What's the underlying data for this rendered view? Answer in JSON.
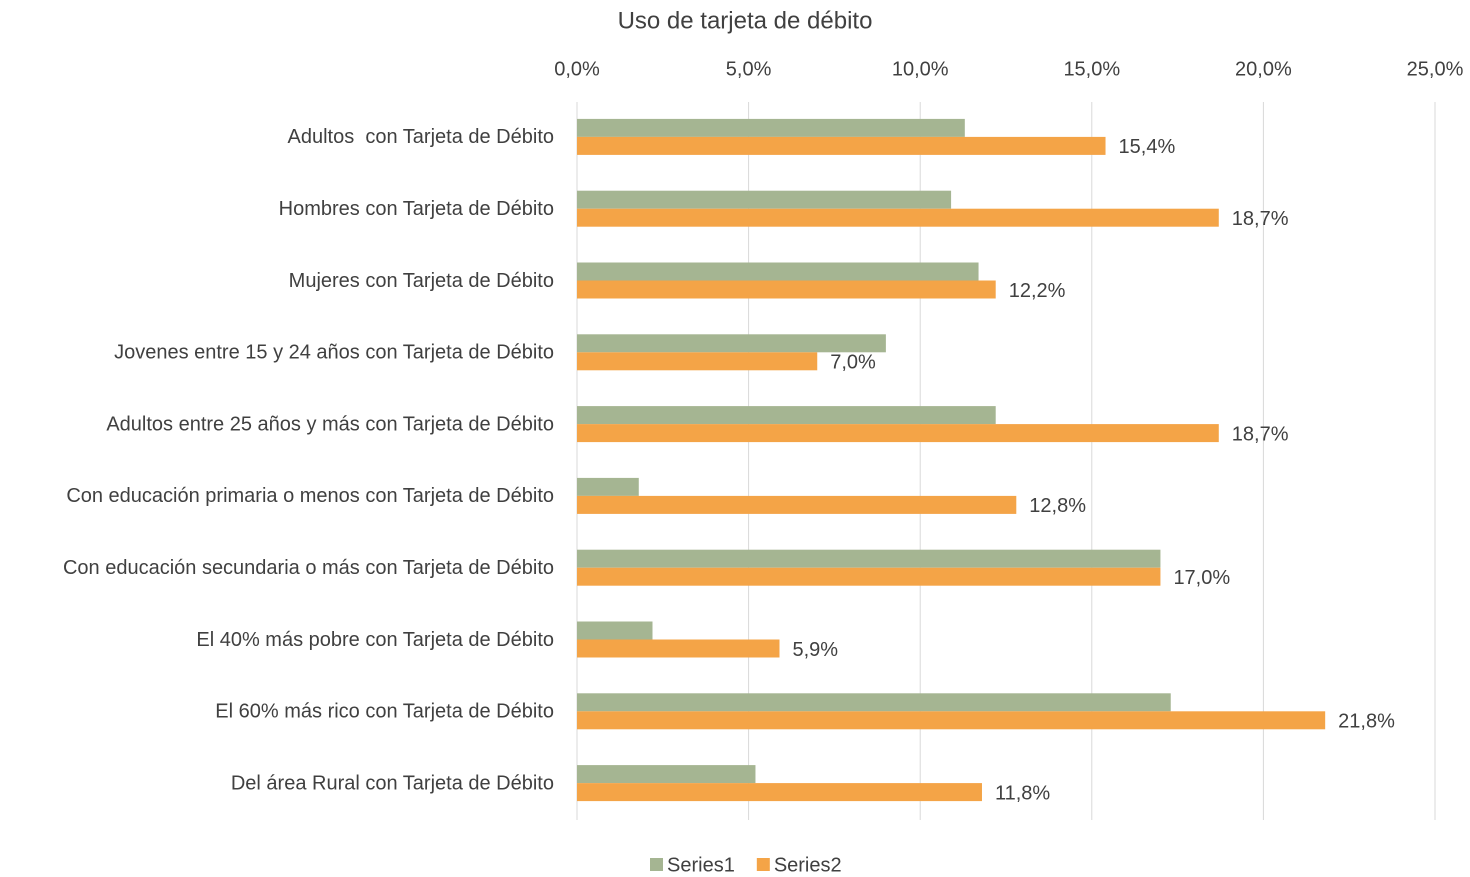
{
  "chart_data": {
    "type": "hbar",
    "title": "Uso de tarjeta de débito",
    "categories": [
      "Adultos  con Tarjeta de Débito",
      "Hombres con Tarjeta de Débito",
      "Mujeres con Tarjeta de Débito",
      "Jovenes entre 15 y 24 años con Tarjeta de Débito",
      "Adultos entre 25 años y más con Tarjeta de Débito",
      "Con educación primaria o menos con Tarjeta de Débito",
      "Con educación secundaria o más con Tarjeta de Débito",
      "El 40% más pobre con Tarjeta de Débito",
      "El 60% más rico con Tarjeta de Débito",
      "Del área Rural con Tarjeta de Débito"
    ],
    "series": [
      {
        "name": "Series1",
        "color": "#a5b592",
        "values": [
          11.3,
          10.9,
          11.7,
          9.0,
          12.2,
          1.8,
          17.0,
          2.2,
          17.3,
          5.2
        ]
      },
      {
        "name": "Series2",
        "color": "#f4a447",
        "values": [
          15.4,
          18.7,
          12.2,
          7.0,
          18.7,
          12.8,
          17.0,
          5.9,
          21.8,
          11.8
        ],
        "value_labels": [
          "15,4%",
          "18,7%",
          "12,2%",
          "7,0%",
          "18,7%",
          "12,8%",
          "17,0%",
          "5,9%",
          "21,8%",
          "11,8%"
        ]
      }
    ],
    "xlim": [
      0,
      25
    ],
    "xticks": [
      {
        "value": 0,
        "label": "0,0%"
      },
      {
        "value": 5,
        "label": "5,0%"
      },
      {
        "value": 10,
        "label": "10,0%"
      },
      {
        "value": 15,
        "label": "15,0%"
      },
      {
        "value": 20,
        "label": "20,0%"
      },
      {
        "value": 25,
        "label": "25,0%"
      }
    ],
    "grid": true,
    "legend": "bottom"
  }
}
